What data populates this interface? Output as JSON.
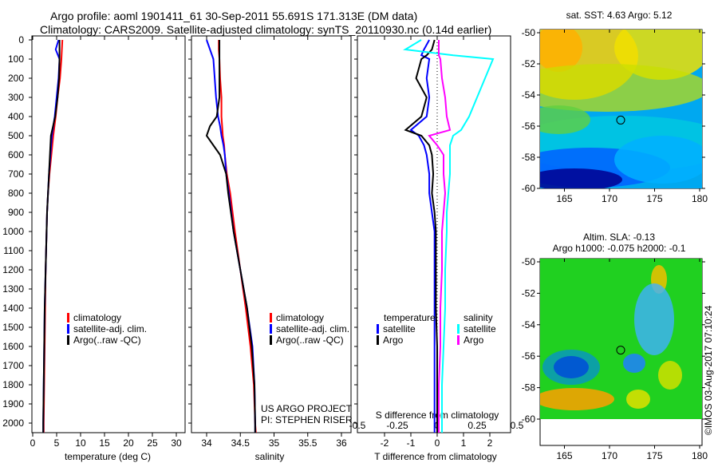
{
  "title_line1": "Argo profile: aoml 1901411_61 30-Sep-2011 55.691S 171.313E (DM data)",
  "title_line2": "Climatology: CARS2009. Satellite-adjusted climatology: synTS_20110930.nc (0.14d earlier)",
  "colors": {
    "climatology": "#ff0000",
    "satellite": "#0000ff",
    "argo": "#000000",
    "sal_satellite": "#00ffff",
    "sal_argo": "#ff00ff"
  },
  "chart_data": [
    {
      "type": "line",
      "xlabel": "temperature (deg C)",
      "xlim": [
        -1,
        31
      ],
      "xticks": [
        "0",
        "5",
        "10",
        "15",
        "20",
        "25",
        "30"
      ],
      "ylim": [
        2060,
        0
      ],
      "yticks": [
        "0",
        "100",
        "200",
        "300",
        "400",
        "500",
        "600",
        "700",
        "800",
        "900",
        "1000",
        "1100",
        "1200",
        "1300",
        "1400",
        "1500",
        "1600",
        "1700",
        "1800",
        "1900",
        "2000"
      ],
      "legend": [
        "climatology",
        "satellite-adj. clim.",
        "Argo(..raw -QC)"
      ],
      "depth": [
        0,
        50,
        100,
        200,
        300,
        400,
        500,
        600,
        700,
        800,
        900,
        1000,
        1200,
        1400,
        1600,
        1800,
        2000,
        2050
      ],
      "series": [
        {
          "name": "climatology",
          "values": [
            6.2,
            6.1,
            6.0,
            5.7,
            5.2,
            4.8,
            4.3,
            3.9,
            3.5,
            3.2,
            3.0,
            2.9,
            2.7,
            2.6,
            2.5,
            2.4,
            2.3,
            2.3
          ]
        },
        {
          "name": "satellite-adj. clim.",
          "values": [
            5.4,
            4.8,
            5.6,
            5.4,
            5.0,
            4.6,
            4.0,
            3.7,
            3.4,
            3.2,
            3.0,
            2.9,
            2.7,
            2.5,
            2.4,
            2.3,
            2.2,
            2.2
          ]
        },
        {
          "name": "Argo(..raw -QC)",
          "values": [
            5.6,
            5.6,
            5.6,
            5.5,
            5.2,
            4.7,
            3.8,
            3.6,
            3.4,
            3.2,
            3.0,
            2.9,
            2.7,
            2.5,
            2.4,
            2.3,
            2.2,
            2.2
          ]
        }
      ]
    },
    {
      "type": "line",
      "xlabel": "salinity",
      "xlim": [
        33.7,
        36.1
      ],
      "xticks": [
        "34",
        "34.5",
        "35",
        "35.5",
        "36"
      ],
      "legend": [
        "climatology",
        "satellite-adj. clim.",
        "Argo(..raw -QC)"
      ],
      "annotation": [
        "US ARGO PROJECT",
        "PI: STEPHEN RISER"
      ],
      "depth": [
        0,
        50,
        100,
        200,
        300,
        400,
        450,
        500,
        550,
        600,
        700,
        800,
        1000,
        1200,
        1400,
        1600,
        1800,
        2000,
        2050
      ],
      "series": [
        {
          "name": "climatology",
          "values": [
            34.18,
            34.18,
            34.19,
            34.2,
            34.22,
            34.22,
            34.23,
            34.24,
            34.26,
            34.27,
            34.3,
            34.35,
            34.42,
            34.5,
            34.58,
            34.65,
            34.7,
            34.72,
            34.73
          ]
        },
        {
          "name": "satellite-adj. clim.",
          "values": [
            34.0,
            34.05,
            34.1,
            34.12,
            34.14,
            34.17,
            34.2,
            34.22,
            34.25,
            34.27,
            34.29,
            34.33,
            34.4,
            34.5,
            34.6,
            34.68,
            34.71,
            34.72,
            34.72
          ]
        },
        {
          "name": "Argo(..raw -QC)",
          "values": [
            34.19,
            34.19,
            34.19,
            34.19,
            34.19,
            34.15,
            34.05,
            34.0,
            34.1,
            34.2,
            34.29,
            34.32,
            34.4,
            34.5,
            34.6,
            34.67,
            34.71,
            34.72,
            34.72
          ]
        }
      ]
    },
    {
      "type": "line",
      "xlabel": "T difference from climatology",
      "xlim": [
        -3,
        3
      ],
      "xticks": [
        "-2",
        "-1",
        "0",
        "1",
        "2"
      ],
      "x2label": "S difference from climatology",
      "x2ticks": [
        "-0.5",
        "-0.25",
        "0",
        "0.25",
        "0.5"
      ],
      "legend_titles": [
        "temperature",
        "salinity"
      ],
      "legend": [
        "satellite",
        "Argo",
        "satellite",
        "Argo"
      ],
      "depth": [
        0,
        50,
        80,
        100,
        200,
        300,
        400,
        470,
        500,
        550,
        600,
        700,
        800,
        900,
        1000,
        1200,
        1400,
        1600,
        1800,
        2000,
        2050
      ],
      "series": [
        {
          "name": "temperature satellite",
          "values": [
            -0.3,
            -0.5,
            -0.6,
            -0.3,
            -0.4,
            -0.3,
            -0.4,
            -1.0,
            -0.7,
            -0.5,
            -0.4,
            -0.3,
            -0.3,
            -0.2,
            -0.1,
            -0.1,
            -0.1,
            -0.1,
            -0.1,
            -0.1,
            -0.1
          ]
        },
        {
          "name": "temperature Argo",
          "values": [
            -0.1,
            -0.2,
            -0.4,
            -0.6,
            -0.8,
            -0.4,
            -0.6,
            -1.2,
            -0.6,
            -0.3,
            -0.2,
            -0.15,
            -0.2,
            -0.1,
            -0.05,
            -0.05,
            -0.05,
            0,
            0,
            0,
            0
          ]
        },
        {
          "name": "salinity satellite",
          "values": [
            -0.1,
            -0.2,
            0.1,
            0.35,
            0.3,
            0.25,
            0.2,
            0.15,
            0.1,
            0.08,
            0.08,
            0.08,
            0.07,
            0.06,
            0.06,
            0.05,
            0.05,
            0.04,
            0.03,
            0.03,
            0.03
          ]
        },
        {
          "name": "salinity Argo",
          "values": [
            0.01,
            0.01,
            0.01,
            0.02,
            0.03,
            0.05,
            0.06,
            0.08,
            -0.05,
            0.0,
            0.04,
            0.04,
            0.05,
            0.04,
            0.03,
            0.03,
            0.02,
            0.02,
            0.01,
            0.01,
            0.01
          ]
        }
      ]
    },
    {
      "type": "heatmap",
      "title": "sat. SST: 4.63 Argo: 5.12",
      "xticks": [
        "165",
        "170",
        "175",
        "180"
      ],
      "yticks": [
        "-50",
        "-52",
        "-54",
        "-56",
        "-58",
        "-60"
      ]
    },
    {
      "type": "heatmap",
      "title": "Altim. SLA: -0.13",
      "subtitle": "Argo h1000: -0.075 h2000: -0.1",
      "xticks": [
        "165",
        "170",
        "175",
        "180"
      ],
      "yticks": [
        "-50",
        "-52",
        "-54",
        "-56",
        "-58",
        "-60"
      ]
    }
  ],
  "watermark": "©IMOS 03-Aug-2017 07:10:24"
}
